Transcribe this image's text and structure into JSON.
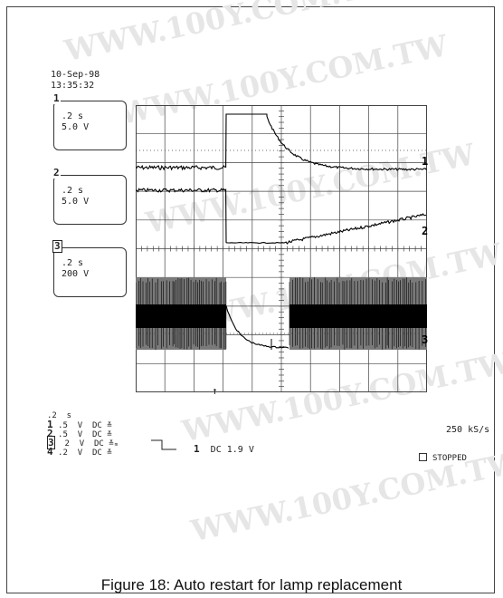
{
  "header": {
    "date": "10-Sep-98",
    "time": "13:35:32"
  },
  "channel_boxes": [
    {
      "number": "1",
      "timebase": ".2 s",
      "volts": "5.0 V"
    },
    {
      "number": "2",
      "timebase": ".2 s",
      "volts": "5.0 V"
    },
    {
      "number": "3",
      "timebase": ".2 s",
      "volts": "200 V"
    }
  ],
  "trace_labels": [
    "1",
    "2",
    "3"
  ],
  "settings": {
    "timebase": ".2  s",
    "channels": [
      {
        "number": "1",
        "scale": ".5",
        "unit": "V",
        "coupling": "DC",
        "bw": "≚"
      },
      {
        "number": "2",
        "scale": ".5",
        "unit": "V",
        "coupling": "DC",
        "bw": "≚"
      },
      {
        "number": "3",
        "scale": "2",
        "unit": "V",
        "coupling": "DC",
        "bw": "≚ₘ"
      },
      {
        "number": "4",
        "scale": ".2",
        "unit": "V",
        "coupling": "DC",
        "bw": "≚"
      }
    ]
  },
  "trigger": {
    "channel": "1",
    "text": "DC 1.9 V"
  },
  "sample_rate": "250 kS/s",
  "status": "STOPPED",
  "caption": "Figure 18: Auto restart for lamp replacement",
  "watermark_text": "WWW.100Y.COM.TW",
  "colors": {
    "grid": "#444444",
    "trace": "#000000",
    "burst_fill": "#7a7a7a"
  }
}
